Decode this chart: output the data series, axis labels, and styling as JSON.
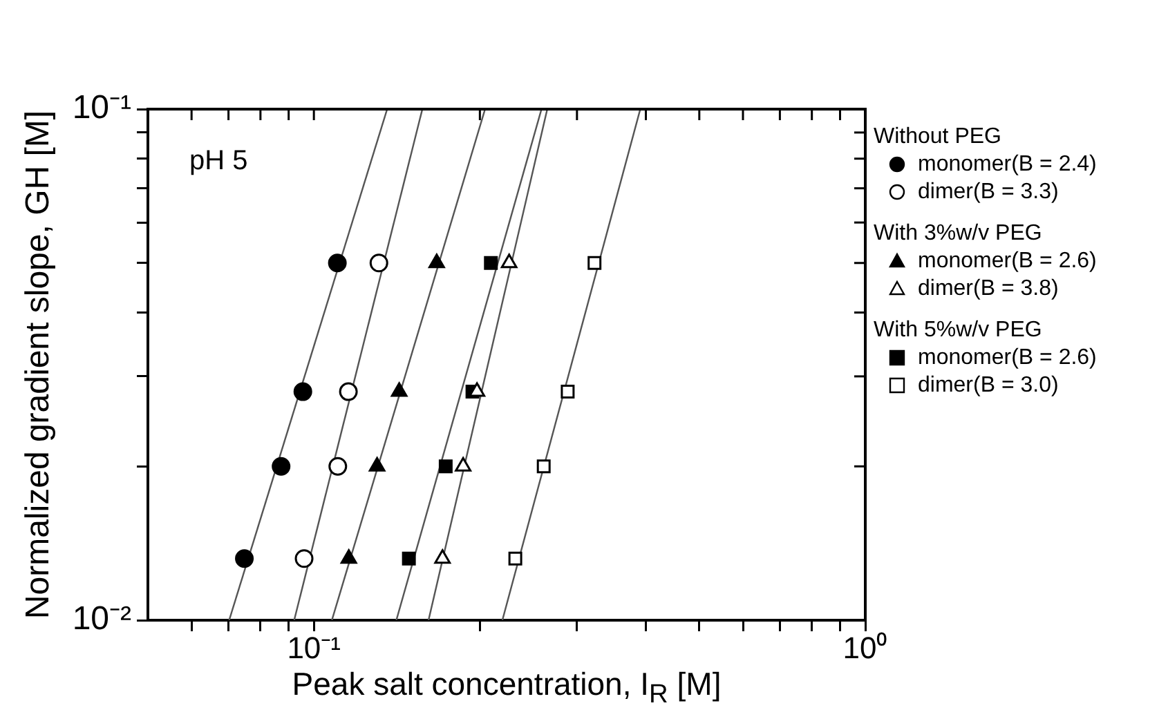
{
  "chart_data": {
    "type": "scatter",
    "xlabel": "Peak salt concentration, I$_{R}$ [M]",
    "ylabel": "Normalized gradient slope, GH [M]",
    "log": "xy",
    "grid": false,
    "legend": "right",
    "xlim": [
      0.05,
      1
    ],
    "ylim": [
      0.01,
      0.1
    ],
    "xticks": [
      {
        "value": 0.06,
        "label": null
      },
      {
        "value": 0.07,
        "label": null
      },
      {
        "value": 0.08,
        "label": null
      },
      {
        "value": 0.09,
        "label": null
      },
      {
        "value": 0.1,
        "label": "10⁻¹"
      },
      {
        "value": 0.2,
        "label": null
      },
      {
        "value": 0.3,
        "label": null
      },
      {
        "value": 0.4,
        "label": null
      },
      {
        "value": 0.5,
        "label": null
      },
      {
        "value": 0.6,
        "label": null
      },
      {
        "value": 0.7,
        "label": null
      },
      {
        "value": 0.8,
        "label": null
      },
      {
        "value": 0.9,
        "label": null
      },
      {
        "value": 1,
        "label": "10⁰"
      }
    ],
    "yticks": [
      {
        "value": 0.01,
        "label": "10⁻²"
      },
      {
        "value": 0.02,
        "label": null
      },
      {
        "value": 0.03,
        "label": null
      },
      {
        "value": 0.04,
        "label": null
      },
      {
        "value": 0.05,
        "label": null
      },
      {
        "value": 0.06,
        "label": null
      },
      {
        "value": 0.07,
        "label": null
      },
      {
        "value": 0.08,
        "label": null
      },
      {
        "value": 0.09,
        "label": null
      },
      {
        "value": 0.1,
        "label": "10⁻¹"
      }
    ],
    "annotations": [
      "pH 5",
      "Without PEG",
      "With 3%w/v PEG",
      "With 5%w/v PEG"
    ],
    "series": [
      {
        "name": "monomer(B = 2.4)",
        "marker": "circle",
        "color": "#000000",
        "x": [
          0.0748,
          0.0872,
          0.0955,
          0.1103
        ],
        "values": [
          0.0132,
          0.02,
          0.028,
          0.05
        ]
      },
      {
        "name": "dimer(B = 3.3)",
        "marker": "circle",
        "color": "#ffffff",
        "x": [
          0.096,
          0.1105,
          0.1155,
          0.1312
        ],
        "values": [
          0.0132,
          0.02,
          0.028,
          0.05
        ]
      },
      {
        "name": "monomer(B = 2.6)",
        "marker": "triangle",
        "color": "#000000",
        "x": [
          0.1157,
          0.1302,
          0.1428,
          0.167
        ],
        "values": [
          0.0132,
          0.02,
          0.028,
          0.05
        ]
      },
      {
        "name": "dimer(B = 3.8)",
        "marker": "triangle",
        "color": "#ffffff",
        "x": [
          0.1711,
          0.1865,
          0.1976,
          0.226
        ],
        "values": [
          0.0132,
          0.02,
          0.028,
          0.05
        ]
      },
      {
        "name": "monomer(B = 2.6)",
        "marker": "square",
        "color": "#000000",
        "x": [
          0.1487,
          0.1734,
          0.1939,
          0.2094
        ],
        "values": [
          0.0132,
          0.02,
          0.028,
          0.05
        ]
      },
      {
        "name": "dimer(B = 3.0)",
        "marker": "square",
        "color": "#ffffff",
        "x": [
          0.2319,
          0.2611,
          0.2886,
          0.3228
        ],
        "values": [
          0.0132,
          0.02,
          0.028,
          0.05
        ]
      },
      {
        "type": "line",
        "marker": "none",
        "color": "#555555",
        "x": [
          0.0702,
          0.1358
        ],
        "values": [
          0.01,
          0.1
        ]
      },
      {
        "type": "line",
        "marker": "none",
        "color": "#555555",
        "x": [
          0.0921,
          0.1573
        ],
        "values": [
          0.01,
          0.1
        ]
      },
      {
        "type": "line",
        "marker": "none",
        "color": "#555555",
        "x": [
          0.1078,
          0.2044
        ],
        "values": [
          0.01,
          0.1
        ]
      },
      {
        "type": "line",
        "marker": "none",
        "color": "#555555",
        "x": [
          0.1411,
          0.2587
        ],
        "values": [
          0.01,
          0.1
        ]
      },
      {
        "type": "line",
        "marker": "none",
        "color": "#555555",
        "x": [
          0.1614,
          0.265
        ],
        "values": [
          0.01,
          0.1
        ]
      },
      {
        "type": "line",
        "marker": "none",
        "color": "#555555",
        "x": [
          0.2197,
          0.3908
        ],
        "values": [
          0.01,
          0.1
        ]
      }
    ]
  }
}
